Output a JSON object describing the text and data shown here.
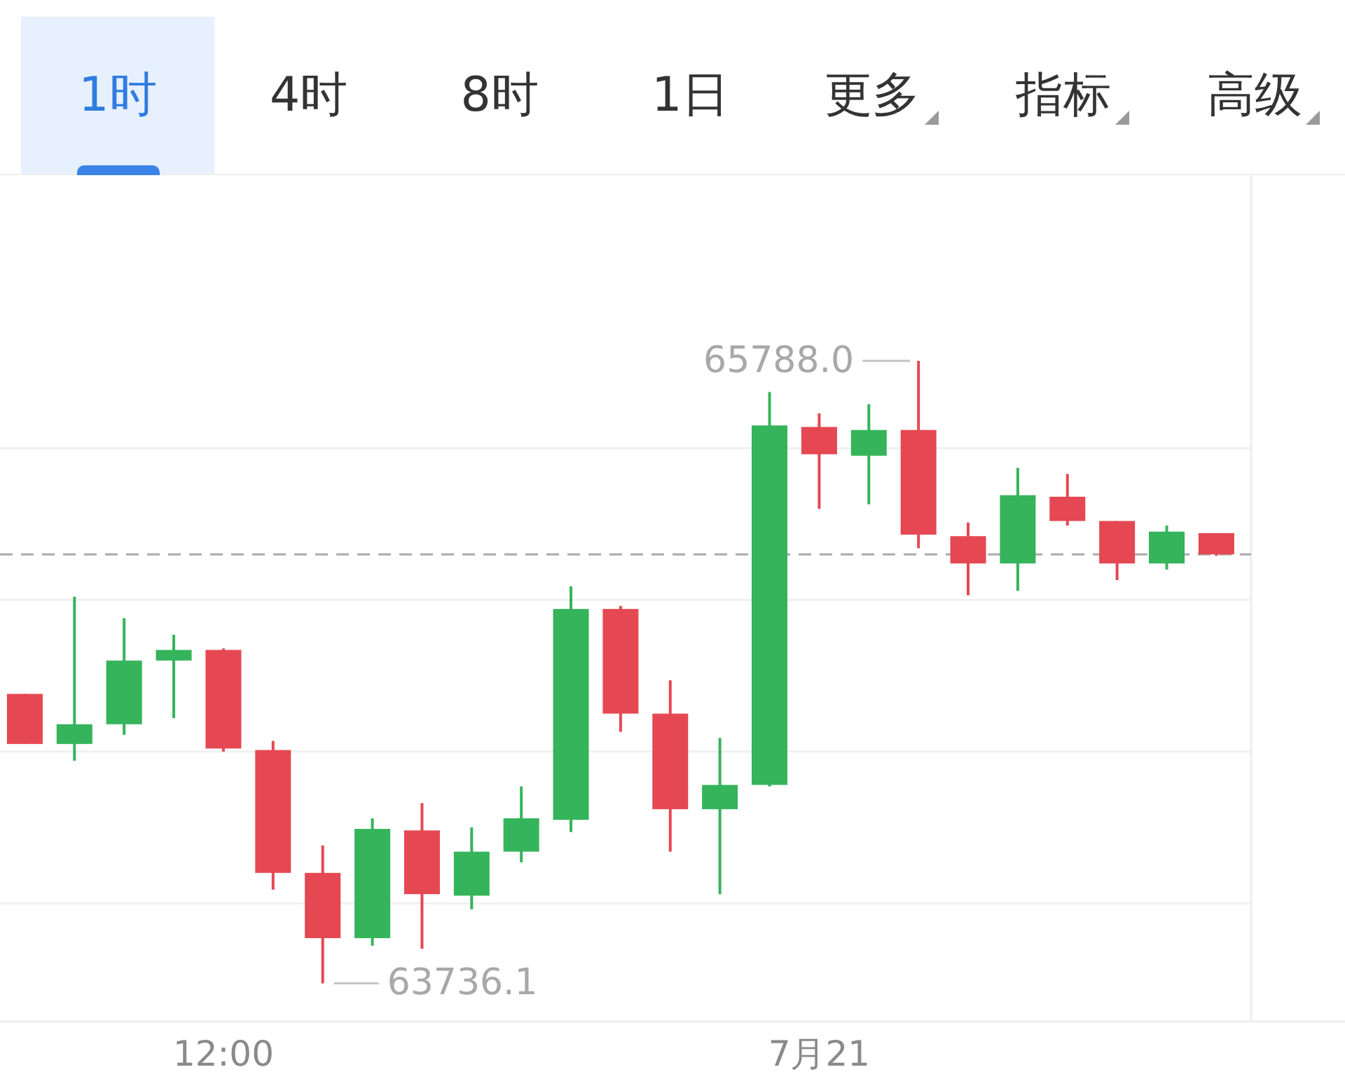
{
  "chart_data": {
    "type": "candlestick",
    "categories": [
      null,
      null,
      null,
      null,
      "12:00",
      null,
      null,
      null,
      null,
      null,
      null,
      null,
      null,
      null,
      null,
      null,
      "7月21",
      null,
      null,
      null,
      null,
      null,
      null,
      null,
      null
    ],
    "ohlc": [
      [
        64690,
        64690,
        64525,
        64525
      ],
      [
        64525,
        65010,
        64470,
        64590
      ],
      [
        64590,
        64940,
        64555,
        64800
      ],
      [
        64800,
        64885,
        64610,
        64835
      ],
      [
        64835,
        64840,
        64500,
        64510
      ],
      [
        64505,
        64535,
        64045,
        64100
      ],
      [
        64100,
        64190,
        63736.1,
        63885
      ],
      [
        63885,
        64280,
        63860,
        64245
      ],
      [
        64240,
        64330,
        63850,
        64030
      ],
      [
        64025,
        64250,
        63980,
        64170
      ],
      [
        64170,
        64385,
        64135,
        64280
      ],
      [
        64275,
        65045,
        64235,
        64970
      ],
      [
        64970,
        64980,
        64565,
        64625
      ],
      [
        64625,
        64735,
        64170,
        64310
      ],
      [
        64310,
        64545,
        64030,
        64390
      ],
      [
        64390,
        65685,
        64385,
        65575
      ],
      [
        65570,
        65615,
        65300,
        65480
      ],
      [
        65475,
        65645,
        65315,
        65560
      ],
      [
        65560,
        65788.0,
        65170,
        65215
      ],
      [
        65210,
        65255,
        65015,
        65120
      ],
      [
        65120,
        65435,
        65030,
        65345
      ],
      [
        65340,
        65415,
        65245,
        65260
      ],
      [
        65260,
        65260,
        65065,
        65120
      ],
      [
        65120,
        65245,
        65100,
        65225
      ],
      [
        65220,
        65220,
        65145,
        65150
      ]
    ],
    "colors": [
      "#e54852",
      "#35b45b",
      "#35b45b",
      "#35b45b",
      "#e54852",
      "#e54852",
      "#e54852",
      "#35b45b",
      "#e54852",
      "#35b45b",
      "#35b45b",
      "#35b45b",
      "#e54852",
      "#e54852",
      "#35b45b",
      "#35b45b",
      "#e54852",
      "#35b45b",
      "#e54852",
      "#e54852",
      "#35b45b",
      "#e54852",
      "#e54852",
      "#35b45b",
      "#e54852"
    ],
    "ylim": [
      63610,
      66400
    ],
    "yticks": [
      {
        "value": 64000,
        "label": null
      },
      {
        "value": 64500,
        "label": null
      },
      {
        "value": 65000,
        "label": null
      },
      {
        "value": 65500,
        "label": null
      }
    ],
    "tick_labels": "x",
    "grid": "y",
    "ref_lines": [
      {
        "axis": "y",
        "value": 65150,
        "color": "#aaaaaa",
        "line_style": "dashed"
      }
    ],
    "annotations": [
      "1时",
      "4时",
      "8时",
      "1日",
      "更多",
      "指标",
      "高级",
      "65788.0",
      "63736.1"
    ]
  }
}
